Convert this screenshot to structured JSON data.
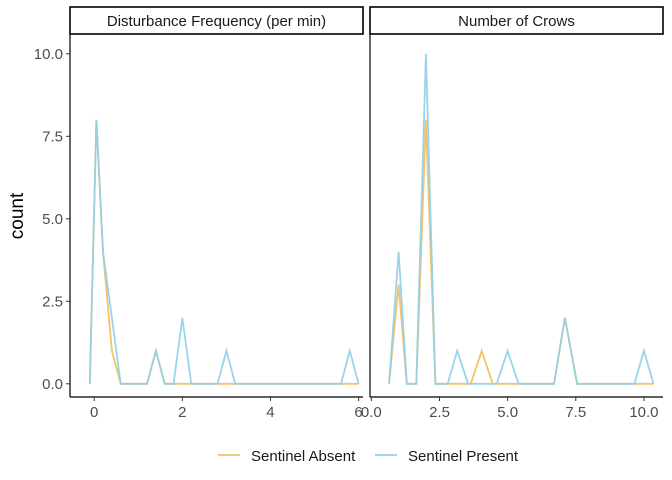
{
  "chart_data": {
    "type": "line",
    "ylabel": "count",
    "ylim": [
      -0.4,
      10.6
    ],
    "y_ticks": [
      0,
      2.5,
      5,
      7.5,
      10
    ],
    "y_tick_labels": [
      "0.0",
      "2.5",
      "5.0",
      "7.5",
      "10.0"
    ],
    "legend": {
      "placement": "bottom",
      "entries": [
        {
          "label": "Sentinel Absent",
          "color": "#F5C26B"
        },
        {
          "label": "Sentinel Present",
          "color": "#8ECFEA"
        }
      ]
    },
    "panels": [
      {
        "strip": "Disturbance Frequency (per min)",
        "xlim": [
          -0.55,
          6.1
        ],
        "x_ticks": [
          0,
          2,
          4,
          6
        ],
        "x_tick_labels": [
          "0",
          "2",
          "4",
          "6"
        ],
        "series": [
          {
            "name": "Sentinel Absent",
            "color": "#F5C26B",
            "x": [
              -0.1,
              0.05,
              0.2,
              0.4,
              0.6,
              1.2,
              1.4,
              1.6,
              2.0,
              2.6,
              3.2,
              5.6,
              5.8,
              6.0
            ],
            "y": [
              0,
              8,
              4,
              1,
              0,
              0,
              1,
              0,
              0,
              0,
              0,
              0,
              0,
              0
            ]
          },
          {
            "name": "Sentinel Present",
            "color": "#8ECFEA",
            "x": [
              -0.1,
              0.05,
              0.2,
              0.4,
              0.6,
              1.2,
              1.4,
              1.6,
              1.8,
              2.0,
              2.2,
              2.8,
              3.0,
              3.2,
              5.6,
              5.8,
              6.0
            ],
            "y": [
              0,
              8,
              4,
              2,
              0,
              0,
              1,
              0,
              0,
              2,
              0,
              0,
              1,
              0,
              0,
              1,
              0
            ]
          }
        ]
      },
      {
        "strip": "Number of Crows",
        "xlim": [
          -0.05,
          10.7
        ],
        "x_ticks": [
          0,
          2.5,
          5,
          7.5,
          10
        ],
        "x_tick_labels": [
          "0.0",
          "2.5",
          "5.0",
          "7.5",
          "10.0"
        ],
        "series": [
          {
            "name": "Sentinel Absent",
            "color": "#F5C26B",
            "x": [
              0.65,
              1.0,
              1.3,
              1.65,
              2.0,
              2.35,
              2.8,
              3.15,
              3.65,
              4.05,
              4.45,
              5.0,
              6.7,
              7.1,
              7.55,
              9.65,
              10.0,
              10.35
            ],
            "y": [
              0,
              3,
              0,
              0,
              8,
              0,
              0,
              0,
              0,
              1,
              0,
              0,
              0,
              2,
              0,
              0,
              0,
              0
            ]
          },
          {
            "name": "Sentinel Present",
            "color": "#8ECFEA",
            "x": [
              0.65,
              1.0,
              1.3,
              1.65,
              2.0,
              2.35,
              2.8,
              3.15,
              3.55,
              4.6,
              5.0,
              5.4,
              6.7,
              7.1,
              7.55,
              9.65,
              10.0,
              10.35
            ],
            "y": [
              0,
              4,
              0,
              0,
              10,
              0,
              0,
              1,
              0,
              0,
              1,
              0,
              0,
              2,
              0,
              0,
              1,
              0
            ]
          }
        ]
      }
    ]
  }
}
